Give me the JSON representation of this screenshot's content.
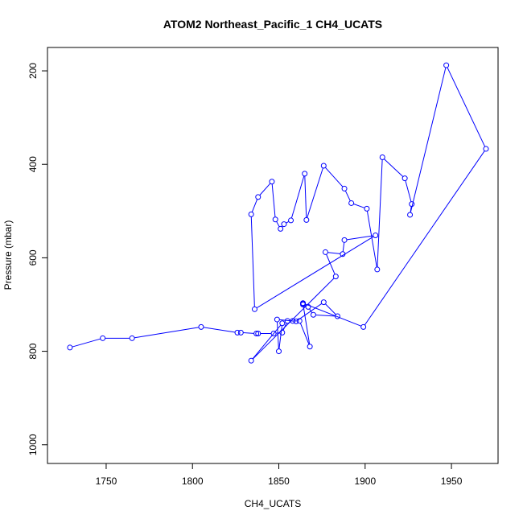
{
  "chart_data": {
    "type": "line",
    "title": "ATOM2 Northeast_Pacific_1 CH4_UCATS",
    "xlabel": "CH4_UCATS",
    "ylabel": "Pressure (mbar)",
    "xlim": [
      1716,
      1977
    ],
    "ylim": [
      1040,
      150
    ],
    "y_reversed": true,
    "grid": false,
    "legend": "none",
    "series_color": "#0000ff",
    "x_ticks": [
      1750,
      1800,
      1850,
      1900,
      1950
    ],
    "y_ticks": [
      200,
      400,
      600,
      800,
      1000
    ],
    "series": [
      {
        "points": [
          [
            1729,
            792
          ],
          [
            1748,
            772
          ],
          [
            1765,
            772
          ],
          [
            1805,
            748
          ],
          [
            1826,
            760
          ],
          [
            1828,
            760
          ],
          [
            1837,
            762
          ],
          [
            1838,
            762
          ],
          [
            1847,
            762
          ],
          [
            1852,
            760
          ],
          [
            1855,
            735
          ],
          [
            1858,
            735
          ],
          [
            1862,
            735
          ],
          [
            1868,
            790
          ],
          [
            1864,
            698
          ],
          [
            1864,
            700
          ],
          [
            1867,
            705
          ],
          [
            1870,
            722
          ],
          [
            1884,
            725
          ],
          [
            1876,
            695
          ],
          [
            1860,
            736
          ],
          [
            1849,
            732
          ],
          [
            1850,
            800
          ],
          [
            1852,
            740
          ],
          [
            1834,
            820
          ],
          [
            1883,
            640
          ],
          [
            1877,
            588
          ],
          [
            1887,
            592
          ],
          [
            1888,
            562
          ],
          [
            1906,
            552
          ],
          [
            1836,
            710
          ],
          [
            1834,
            507
          ],
          [
            1838,
            470
          ],
          [
            1846,
            437
          ],
          [
            1848,
            518
          ],
          [
            1851,
            538
          ],
          [
            1853,
            528
          ],
          [
            1857,
            520
          ],
          [
            1865,
            420
          ],
          [
            1866,
            519
          ],
          [
            1876,
            403
          ],
          [
            1888,
            452
          ],
          [
            1892,
            483
          ],
          [
            1901,
            495
          ],
          [
            1907,
            625
          ],
          [
            1910,
            385
          ],
          [
            1923,
            430
          ],
          [
            1927,
            485
          ],
          [
            1926,
            508
          ],
          [
            1947,
            188
          ],
          [
            1970,
            367
          ],
          [
            1899,
            748
          ],
          [
            1864,
            697
          ]
        ]
      }
    ]
  }
}
